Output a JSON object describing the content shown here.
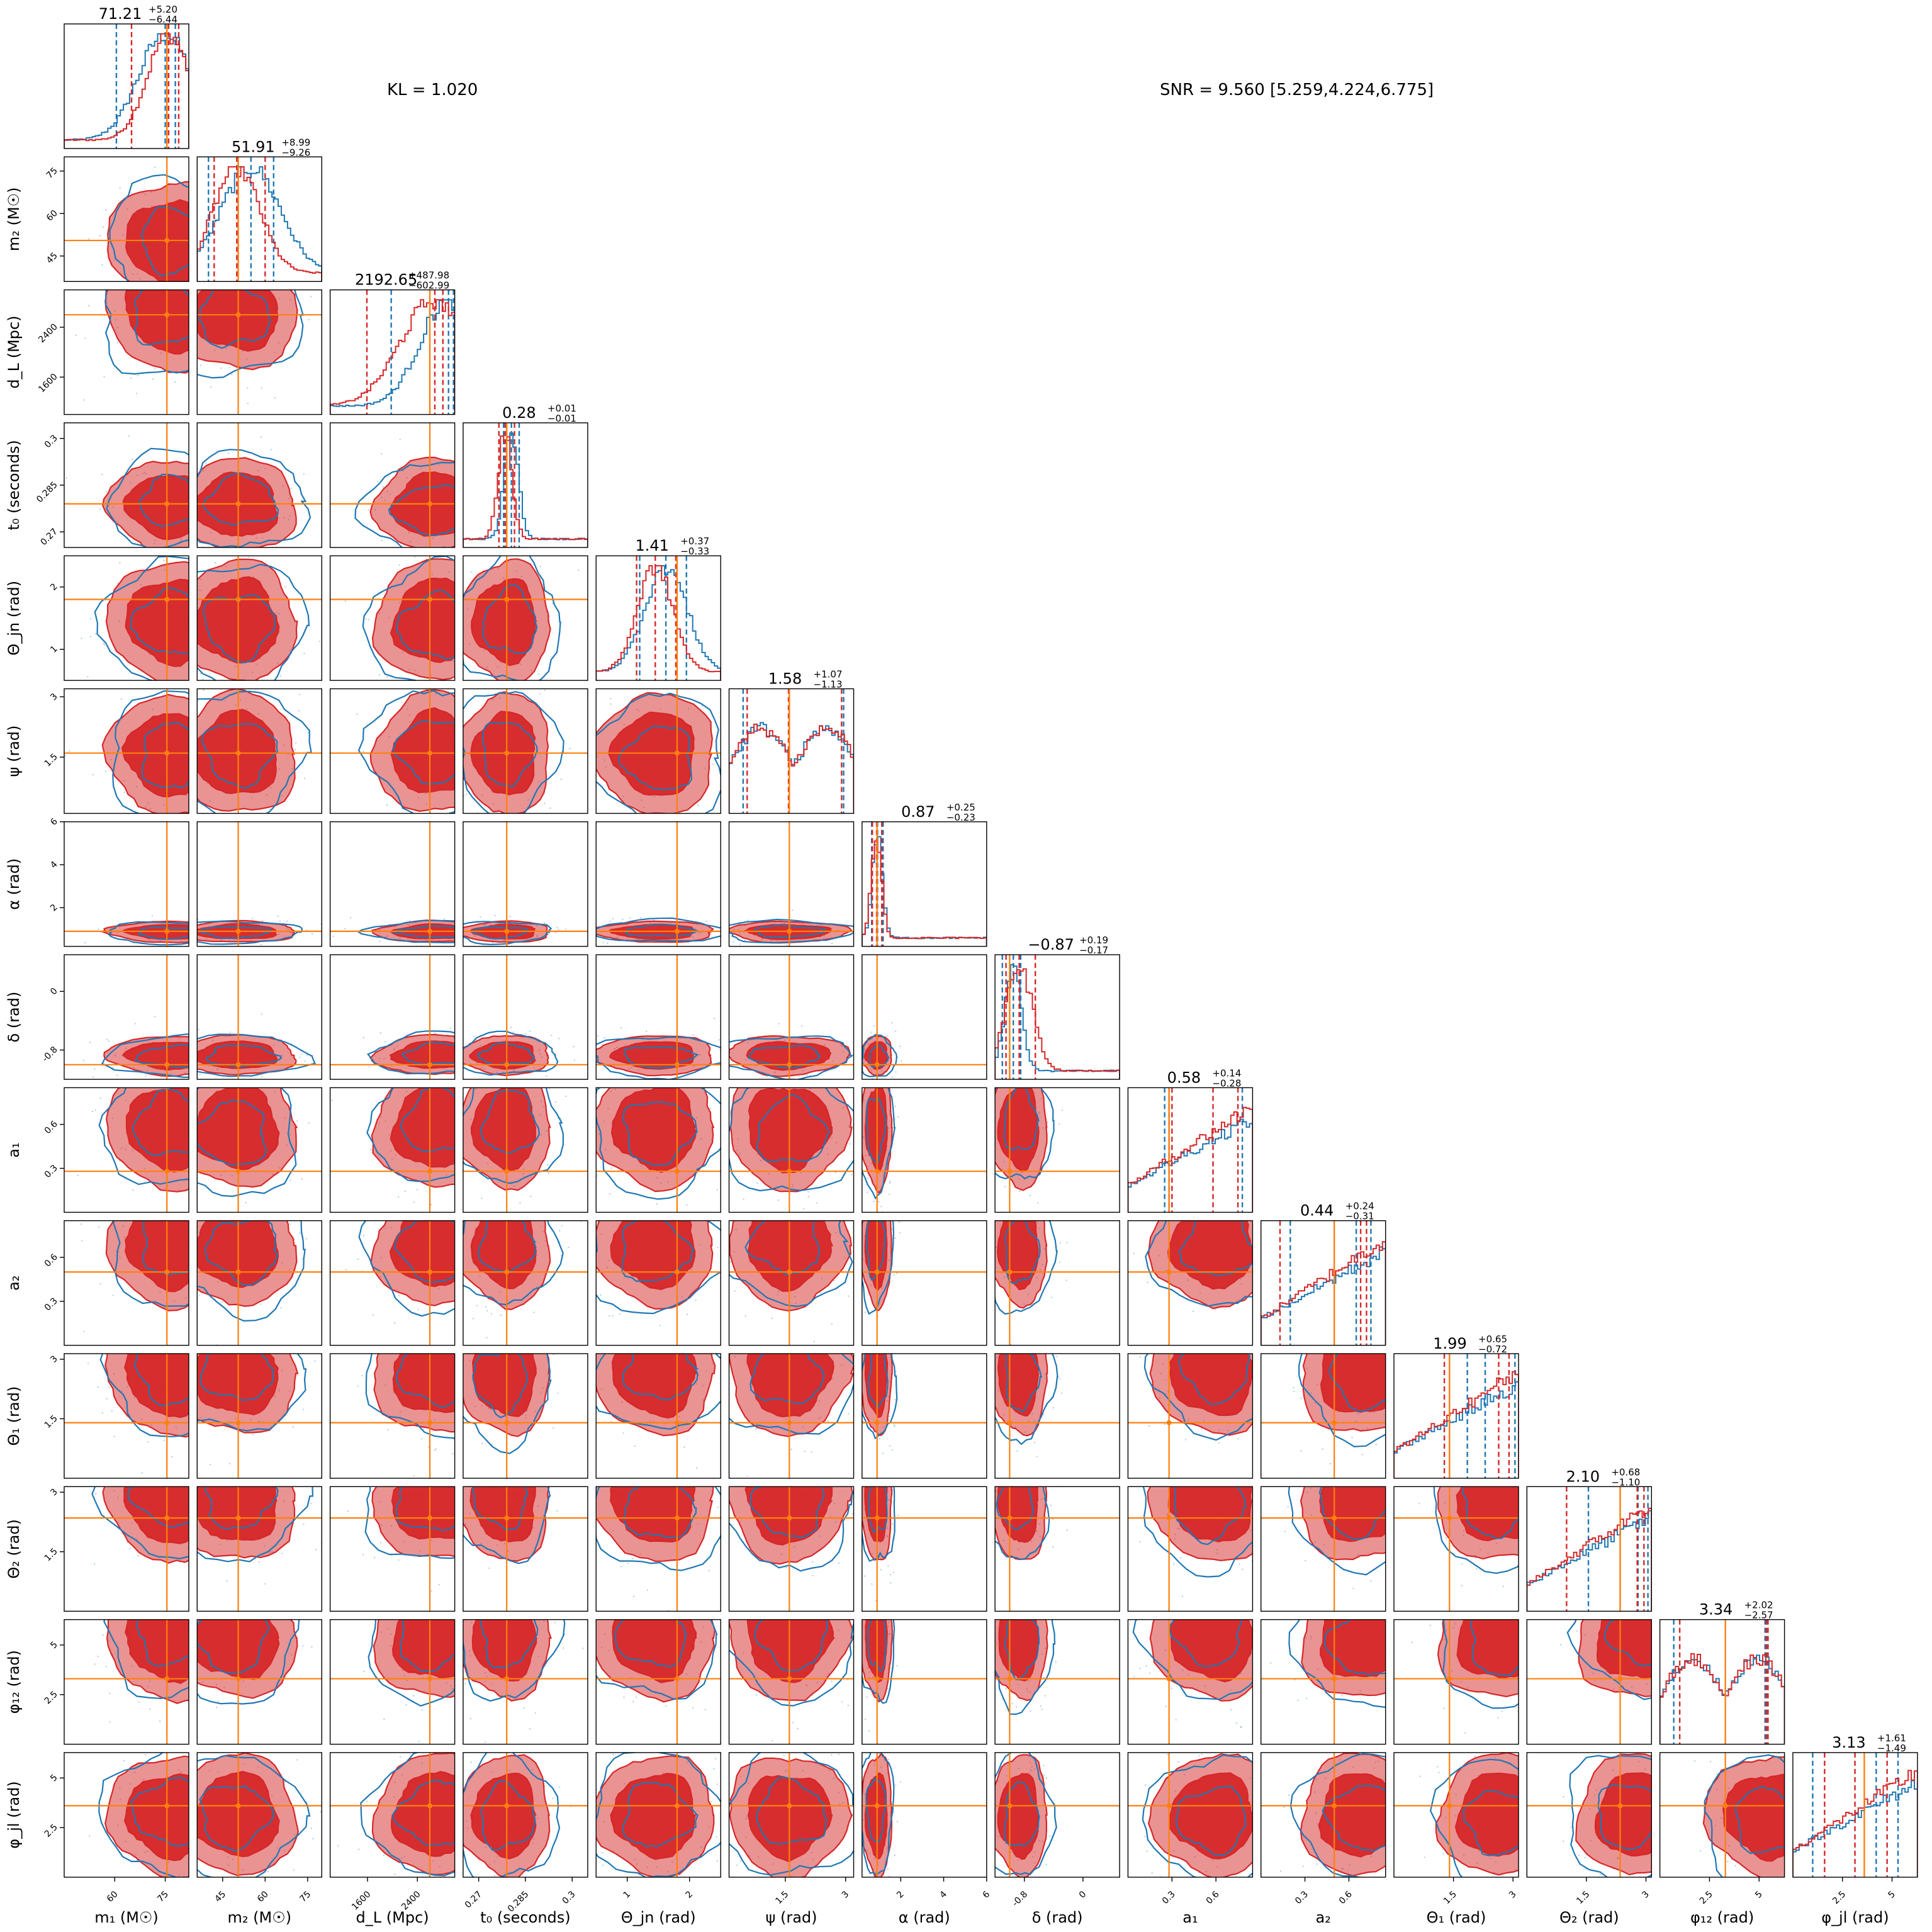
{
  "annotations": {
    "kl": "KL = 1.020",
    "snr": "SNR = 9.560 [5.259,4.224,6.775]"
  },
  "chart_data": {
    "type": "corner",
    "colors": {
      "posterior_a": "#1f77b4",
      "posterior_b": "#d62728",
      "truth": "#ff7f0e",
      "frame": "#000000"
    },
    "parameters": [
      {
        "key": "m1",
        "label": "m₁ (M☉)",
        "range": [
          45,
          82
        ],
        "ticks": [
          60,
          75
        ],
        "truth": 75.5,
        "summary": {
          "median": "71.21",
          "plus": "+5.20",
          "minus": "−6.44"
        },
        "blue_quantiles": [
          60.5,
          75,
          78
        ],
        "red_quantiles": [
          65,
          76,
          79
        ]
      },
      {
        "key": "m2",
        "label": "m₂ (M☉)",
        "range": [
          36,
          80
        ],
        "ticks": [
          45,
          60,
          75
        ],
        "truth": 50.5,
        "summary": {
          "median": "51.91",
          "plus": "+8.99",
          "minus": "−9.26"
        },
        "blue_quantiles": [
          40,
          55,
          63
        ],
        "red_quantiles": [
          42,
          50,
          60
        ]
      },
      {
        "key": "dL",
        "label": "d_L (Mpc)",
        "range": [
          1000,
          3000
        ],
        "ticks": [
          1600,
          2400
        ],
        "truth": 2600,
        "summary": {
          "median": "2192.65",
          "plus": "+487.98",
          "minus": "−602.99"
        },
        "blue_quantiles": [
          1980,
          2900,
          2980
        ],
        "red_quantiles": [
          1590,
          2680,
          2810
        ]
      },
      {
        "key": "t0",
        "label": "t₀ (seconds)",
        "range": [
          0.265,
          0.305
        ],
        "ticks": [
          0.27,
          0.285,
          0.3
        ],
        "truth": 0.279,
        "summary": {
          "median": "0.28",
          "plus": "+0.01",
          "minus": "−0.01"
        },
        "blue_quantiles": [
          0.278,
          0.2805,
          0.283
        ],
        "red_quantiles": [
          0.2765,
          0.2785,
          0.2815
        ]
      },
      {
        "key": "thetajn",
        "label": "Θ_jn (rad)",
        "range": [
          0.5,
          2.5
        ],
        "ticks": [
          1,
          2
        ],
        "truth": 1.8,
        "summary": {
          "median": "1.41",
          "plus": "+0.37",
          "minus": "−0.33"
        },
        "blue_quantiles": [
          1.2,
          1.62,
          1.95
        ],
        "red_quantiles": [
          1.15,
          1.45,
          1.78
        ]
      },
      {
        "key": "psi",
        "label": "ψ (rad)",
        "range": [
          0.1,
          3.2
        ],
        "ticks": [
          1.5,
          3.0
        ],
        "truth": 1.6,
        "summary": {
          "median": "1.58",
          "plus": "+1.07",
          "minus": "−1.13"
        },
        "blue_quantiles": [
          0.45,
          1.6,
          2.95
        ],
        "red_quantiles": [
          0.55,
          1.58,
          2.9
        ]
      },
      {
        "key": "alpha",
        "label": "α (rad)",
        "range": [
          0.2,
          6.0
        ],
        "ticks": [
          2,
          4,
          6
        ],
        "truth": 0.9,
        "summary": {
          "median": "0.87",
          "plus": "+0.25",
          "minus": "−0.23"
        },
        "blue_quantiles": [
          0.65,
          0.92,
          1.18
        ],
        "red_quantiles": [
          0.68,
          0.88,
          1.12
        ]
      },
      {
        "key": "delta",
        "label": "δ (rad)",
        "range": [
          -1.2,
          0.5
        ],
        "ticks": [
          -0.8,
          0.0
        ],
        "truth": -1.0,
        "summary": {
          "median": "−0.87",
          "plus": "+0.19",
          "minus": "−0.17"
        },
        "blue_quantiles": [
          -1.1,
          -0.95,
          -0.85
        ],
        "red_quantiles": [
          -1.05,
          -0.87,
          -0.65
        ]
      },
      {
        "key": "a1",
        "label": "a₁",
        "range": [
          0.0,
          0.85
        ],
        "ticks": [
          0.3,
          0.6
        ],
        "truth": 0.28,
        "summary": {
          "median": "0.58",
          "plus": "+0.14",
          "minus": "−0.28"
        },
        "blue_quantiles": [
          0.25,
          0.28,
          0.78
        ],
        "red_quantiles": [
          0.3,
          0.58,
          0.75
        ]
      },
      {
        "key": "a2",
        "label": "a₂",
        "range": [
          0.0,
          0.85
        ],
        "ticks": [
          0.3,
          0.6
        ],
        "truth": 0.5,
        "summary": {
          "median": "0.44",
          "plus": "+0.24",
          "minus": "−0.31"
        },
        "blue_quantiles": [
          0.2,
          0.65,
          0.75
        ],
        "red_quantiles": [
          0.13,
          0.68,
          0.72
        ]
      },
      {
        "key": "theta1",
        "label": "Θ₁ (rad)",
        "range": [
          0.0,
          3.14
        ],
        "ticks": [
          1.5,
          3.0
        ],
        "truth": 1.4,
        "summary": {
          "median": "1.99",
          "plus": "+0.65",
          "minus": "−0.72"
        },
        "blue_quantiles": [
          1.85,
          2.3,
          3.05
        ],
        "red_quantiles": [
          1.27,
          2.64,
          2.9
        ]
      },
      {
        "key": "theta2",
        "label": "Θ₂ (rad)",
        "range": [
          0.0,
          3.14
        ],
        "ticks": [
          1.5,
          3.0
        ],
        "truth": 2.35,
        "summary": {
          "median": "2.10",
          "plus": "+0.68",
          "minus": "−1.10"
        },
        "blue_quantiles": [
          1.55,
          2.8,
          3.05
        ],
        "red_quantiles": [
          1.0,
          2.78,
          2.95
        ]
      },
      {
        "key": "phi12",
        "label": "φ₁₂ (rad)",
        "range": [
          0.0,
          6.28
        ],
        "ticks": [
          2.5,
          5.0
        ],
        "truth": 3.3,
        "summary": {
          "median": "3.34",
          "plus": "+2.02",
          "minus": "−2.57"
        },
        "blue_quantiles": [
          0.7,
          5.3,
          5.4
        ],
        "red_quantiles": [
          1.0,
          5.35,
          5.45
        ]
      },
      {
        "key": "phijl",
        "label": "φ_jl (rad)",
        "range": [
          0.0,
          6.28
        ],
        "ticks": [
          2.5,
          5.0
        ],
        "truth": 3.6,
        "summary": {
          "median": "3.13",
          "plus": "+1.61",
          "minus": "−1.49"
        },
        "blue_quantiles": [
          1.0,
          4.2,
          5.3
        ],
        "red_quantiles": [
          1.6,
          3.13,
          4.75
        ]
      }
    ]
  }
}
